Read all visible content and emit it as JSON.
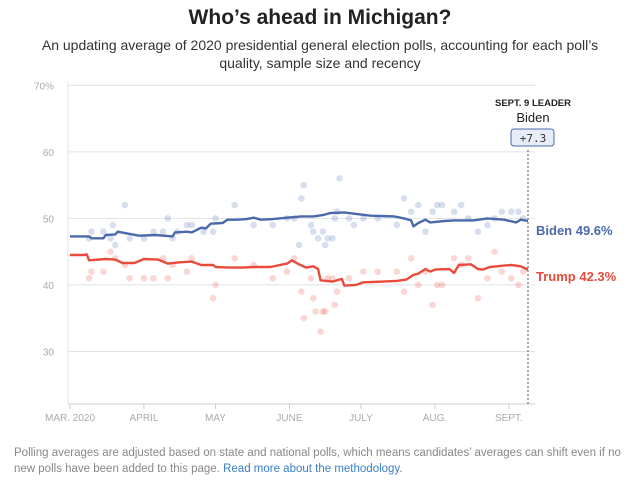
{
  "title": "Who’s ahead in Michigan?",
  "subtitle": "An updating average of 2020 presidential general election polls, accounting for each poll’s quality, sample size and recency",
  "footnote": {
    "text": "Polling averages are adjusted based on state and national polls, which means candidates’ averages can shift even if no new polls have been added to this page.",
    "link": "Read more about the methodology."
  },
  "leader_box": {
    "heading": "SEPT. 9 LEADER",
    "name": "Biden",
    "margin": "+7.3"
  },
  "end_labels": {
    "biden": "Biden 49.6%",
    "trump": "Trump 42.3%"
  },
  "chart_data": {
    "type": "line",
    "title": "Who’s ahead in Michigan?",
    "x_unit": "day of year 2020",
    "x_range": [
      61,
      253
    ],
    "xlabel": "",
    "ylabel": "",
    "ylim": [
      20,
      72
    ],
    "yticks": [
      30,
      40,
      50,
      60,
      70
    ],
    "ytick_labels": [
      "30",
      "40",
      "50",
      "60",
      "70%"
    ],
    "xticks": [
      {
        "label": "MAR. 2020",
        "day": 61
      },
      {
        "label": "APRIL",
        "day": 92
      },
      {
        "label": "MAY",
        "day": 122
      },
      {
        "label": "JUNE",
        "day": 153
      },
      {
        "label": "JULY",
        "day": 183
      },
      {
        "label": "AUG.",
        "day": 214
      },
      {
        "label": "SEPT.",
        "day": 245
      }
    ],
    "grid": true,
    "legend": "none",
    "series": [
      {
        "name": "Biden",
        "color": "#4a69ad",
        "final": 49.6,
        "points": [
          [
            61,
            47.3
          ],
          [
            69,
            47.3
          ],
          [
            70,
            47.0
          ],
          [
            75,
            47.0
          ],
          [
            76,
            47.5
          ],
          [
            80,
            47.6
          ],
          [
            81,
            48.0
          ],
          [
            90,
            47.4
          ],
          [
            97,
            47.5
          ],
          [
            104,
            47.3
          ],
          [
            105,
            47.9
          ],
          [
            110,
            48.0
          ],
          [
            112,
            47.9
          ],
          [
            116,
            48.6
          ],
          [
            118,
            48.5
          ],
          [
            120,
            49.2
          ],
          [
            125,
            49.3
          ],
          [
            127,
            49.8
          ],
          [
            131,
            49.8
          ],
          [
            135,
            49.9
          ],
          [
            138,
            50.1
          ],
          [
            141,
            49.8
          ],
          [
            146,
            49.9
          ],
          [
            152,
            50.1
          ],
          [
            158,
            50.3
          ],
          [
            163,
            50.3
          ],
          [
            167,
            50.5
          ],
          [
            170,
            50.8
          ],
          [
            176,
            50.9
          ],
          [
            180,
            50.7
          ],
          [
            187,
            50.4
          ],
          [
            197,
            50.3
          ],
          [
            201,
            50.0
          ],
          [
            204,
            49.7
          ],
          [
            205,
            48.8
          ],
          [
            207,
            49.3
          ],
          [
            210,
            49.8
          ],
          [
            212,
            49.4
          ],
          [
            218,
            49.6
          ],
          [
            222,
            49.7
          ],
          [
            230,
            49.7
          ],
          [
            236,
            50.0
          ],
          [
            243,
            49.8
          ],
          [
            248,
            49.4
          ],
          [
            250,
            49.8
          ],
          [
            253,
            49.6
          ]
        ]
      },
      {
        "name": "Trump",
        "color": "#e84b3c",
        "final": 42.3,
        "points": [
          [
            61,
            44.5
          ],
          [
            67,
            44.5
          ],
          [
            68,
            44.6
          ],
          [
            69,
            43.7
          ],
          [
            76,
            43.9
          ],
          [
            80,
            43.8
          ],
          [
            83,
            43.3
          ],
          [
            88,
            43.3
          ],
          [
            92,
            43.9
          ],
          [
            98,
            43.8
          ],
          [
            102,
            43.2
          ],
          [
            107,
            43.4
          ],
          [
            112,
            43.5
          ],
          [
            116,
            43.0
          ],
          [
            121,
            43.0
          ],
          [
            122,
            42.7
          ],
          [
            128,
            42.6
          ],
          [
            133,
            42.6
          ],
          [
            138,
            42.7
          ],
          [
            145,
            42.7
          ],
          [
            152,
            43.2
          ],
          [
            154,
            43.7
          ],
          [
            157,
            43.1
          ],
          [
            160,
            42.6
          ],
          [
            163,
            42.8
          ],
          [
            165,
            42.4
          ],
          [
            166,
            40.7
          ],
          [
            171,
            40.5
          ],
          [
            175,
            40.9
          ],
          [
            176,
            39.9
          ],
          [
            181,
            40.0
          ],
          [
            184,
            40.4
          ],
          [
            192,
            40.5
          ],
          [
            198,
            40.6
          ],
          [
            202,
            40.8
          ],
          [
            205,
            41.5
          ],
          [
            207,
            41.7
          ],
          [
            210,
            42.4
          ],
          [
            212,
            42.0
          ],
          [
            214,
            42.3
          ],
          [
            220,
            42.4
          ],
          [
            222,
            41.8
          ],
          [
            224,
            43.0
          ],
          [
            229,
            43.1
          ],
          [
            232,
            42.4
          ],
          [
            234,
            42.3
          ],
          [
            237,
            42.7
          ],
          [
            240,
            42.8
          ],
          [
            243,
            42.9
          ],
          [
            246,
            43.0
          ],
          [
            250,
            42.8
          ],
          [
            253,
            42.3
          ]
        ]
      }
    ],
    "scatter_series": [
      {
        "name": "Biden polls",
        "color": "#4a69ad",
        "points": [
          [
            69,
            47
          ],
          [
            70,
            48
          ],
          [
            75,
            48
          ],
          [
            78,
            47
          ],
          [
            79,
            49
          ],
          [
            80,
            46
          ],
          [
            84,
            52
          ],
          [
            86,
            47
          ],
          [
            92,
            47
          ],
          [
            96,
            48
          ],
          [
            100,
            48
          ],
          [
            102,
            50
          ],
          [
            104,
            47
          ],
          [
            106,
            48
          ],
          [
            110,
            49
          ],
          [
            112,
            49
          ],
          [
            117,
            48
          ],
          [
            121,
            48
          ],
          [
            122,
            50
          ],
          [
            130,
            52
          ],
          [
            138,
            49
          ],
          [
            146,
            49
          ],
          [
            152,
            50
          ],
          [
            155,
            50
          ],
          [
            157,
            46
          ],
          [
            158,
            53
          ],
          [
            159,
            55
          ],
          [
            162,
            49
          ],
          [
            163,
            48
          ],
          [
            165,
            47
          ],
          [
            167,
            48
          ],
          [
            168,
            46
          ],
          [
            169,
            47
          ],
          [
            171,
            47
          ],
          [
            172,
            50
          ],
          [
            173,
            51
          ],
          [
            174,
            56
          ],
          [
            178,
            50
          ],
          [
            180,
            49
          ],
          [
            184,
            50
          ],
          [
            190,
            50
          ],
          [
            198,
            49
          ],
          [
            201,
            53
          ],
          [
            204,
            51
          ],
          [
            207,
            52
          ],
          [
            210,
            48
          ],
          [
            213,
            51
          ],
          [
            215,
            52
          ],
          [
            217,
            52
          ],
          [
            222,
            51
          ],
          [
            225,
            52
          ],
          [
            228,
            50
          ],
          [
            232,
            48
          ],
          [
            236,
            49
          ],
          [
            239,
            50
          ],
          [
            242,
            51
          ],
          [
            246,
            51
          ],
          [
            249,
            51
          ],
          [
            251,
            50
          ]
        ]
      },
      {
        "name": "Trump polls",
        "color": "#e84b3c",
        "points": [
          [
            69,
            41
          ],
          [
            70,
            42
          ],
          [
            75,
            42
          ],
          [
            78,
            45
          ],
          [
            80,
            44
          ],
          [
            84,
            43
          ],
          [
            86,
            41
          ],
          [
            92,
            41
          ],
          [
            96,
            41
          ],
          [
            100,
            44
          ],
          [
            102,
            41
          ],
          [
            104,
            43
          ],
          [
            110,
            42
          ],
          [
            112,
            44
          ],
          [
            121,
            38
          ],
          [
            122,
            40
          ],
          [
            130,
            44
          ],
          [
            138,
            43
          ],
          [
            146,
            41
          ],
          [
            152,
            42
          ],
          [
            155,
            44
          ],
          [
            158,
            39
          ],
          [
            159,
            35
          ],
          [
            162,
            41
          ],
          [
            163,
            38
          ],
          [
            164,
            36
          ],
          [
            166,
            33
          ],
          [
            167,
            36
          ],
          [
            168,
            36
          ],
          [
            169,
            41
          ],
          [
            171,
            41
          ],
          [
            172,
            37
          ],
          [
            173,
            39
          ],
          [
            178,
            41
          ],
          [
            184,
            42
          ],
          [
            190,
            42
          ],
          [
            198,
            42
          ],
          [
            201,
            39
          ],
          [
            204,
            44
          ],
          [
            207,
            40
          ],
          [
            210,
            42
          ],
          [
            213,
            37
          ],
          [
            215,
            40
          ],
          [
            217,
            40
          ],
          [
            222,
            44
          ],
          [
            225,
            43
          ],
          [
            228,
            44
          ],
          [
            232,
            38
          ],
          [
            236,
            41
          ],
          [
            239,
            45
          ],
          [
            242,
            42
          ],
          [
            246,
            41
          ],
          [
            249,
            40
          ],
          [
            251,
            42
          ]
        ]
      }
    ],
    "annotation": {
      "label": "SEPT. 9 LEADER",
      "leader": "Biden",
      "margin": "+7.3",
      "day": 253
    }
  }
}
